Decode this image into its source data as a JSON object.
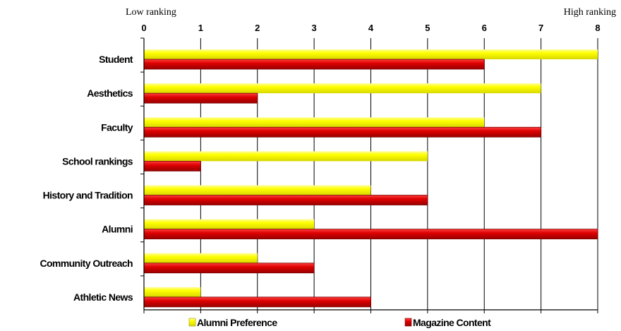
{
  "chart_data": {
    "type": "bar",
    "orientation": "horizontal",
    "categories": [
      "Student",
      "Aesthetics",
      "Faculty",
      "School rankings",
      "History and Tradition",
      "Alumni",
      "Community Outreach",
      "Athletic News"
    ],
    "series": [
      {
        "name": "Alumni Preference",
        "values": [
          8,
          7,
          6,
          5,
          4,
          3,
          2,
          1
        ],
        "color": "#ffff00"
      },
      {
        "name": "Magazine Content",
        "values": [
          6,
          2,
          7,
          1,
          5,
          8,
          3,
          4
        ],
        "color": "#dd0000"
      }
    ],
    "xlim": [
      0,
      8
    ],
    "xticks": [
      "0",
      "1",
      "2",
      "3",
      "4",
      "5",
      "6",
      "7",
      "8"
    ],
    "axis_position": "top",
    "annotations": {
      "left": "Low ranking",
      "right": "High ranking"
    },
    "grid": true,
    "legend_position": "bottom"
  }
}
